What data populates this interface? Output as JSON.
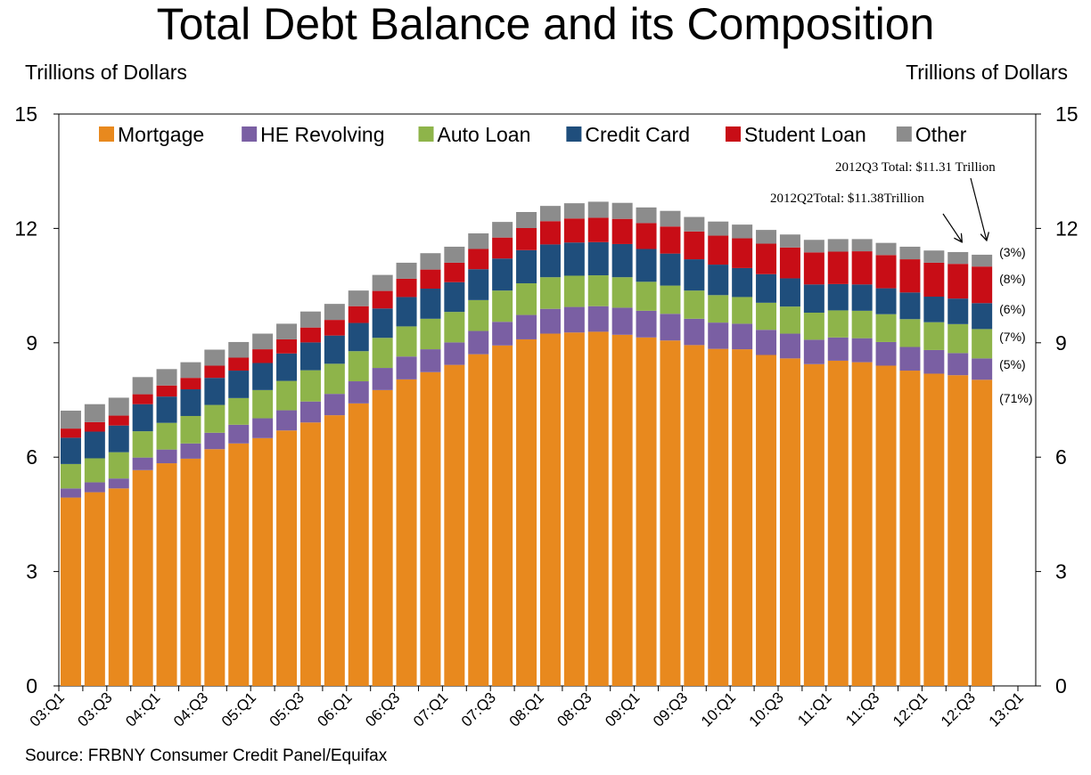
{
  "chart_data": {
    "type": "stacked-bar",
    "title": "Total Debt Balance and its Composition",
    "ylabel_left": "Trillions of Dollars",
    "ylabel_right": "Trillions of Dollars",
    "ylim": [
      0,
      15
    ],
    "yticks": [
      0,
      3,
      6,
      9,
      12,
      15
    ],
    "legend_position": "top",
    "x_tick_labels": [
      "03:Q1",
      "03:Q3",
      "04:Q1",
      "04:Q3",
      "05:Q1",
      "05:Q3",
      "06:Q1",
      "06:Q3",
      "07:Q1",
      "07:Q3",
      "08:Q1",
      "08:Q3",
      "09:Q1",
      "09:Q3",
      "10:Q1",
      "10:Q3",
      "11:Q1",
      "11:Q3",
      "12:Q1",
      "12:Q3",
      "13:Q1"
    ],
    "categories": [
      "03:Q1",
      "03:Q2",
      "03:Q3",
      "03:Q4",
      "04:Q1",
      "04:Q2",
      "04:Q3",
      "04:Q4",
      "05:Q1",
      "05:Q2",
      "05:Q3",
      "05:Q4",
      "06:Q1",
      "06:Q2",
      "06:Q3",
      "06:Q4",
      "07:Q1",
      "07:Q2",
      "07:Q3",
      "07:Q4",
      "08:Q1",
      "08:Q2",
      "08:Q3",
      "08:Q4",
      "09:Q1",
      "09:Q2",
      "09:Q3",
      "09:Q4",
      "10:Q1",
      "10:Q2",
      "10:Q3",
      "10:Q4",
      "11:Q1",
      "11:Q2",
      "11:Q3",
      "11:Q4",
      "12:Q1",
      "12:Q2",
      "12:Q3"
    ],
    "series": [
      {
        "name": "Mortgage",
        "color": "#e8891e",
        "values": [
          4.94,
          5.08,
          5.18,
          5.66,
          5.84,
          5.96,
          6.21,
          6.36,
          6.5,
          6.7,
          6.91,
          7.1,
          7.41,
          7.76,
          8.04,
          8.23,
          8.42,
          8.7,
          8.93,
          9.09,
          9.24,
          9.27,
          9.29,
          9.21,
          9.14,
          9.06,
          8.94,
          8.84,
          8.83,
          8.68,
          8.59,
          8.44,
          8.53,
          8.49,
          8.4,
          8.27,
          8.19,
          8.15,
          8.03
        ]
      },
      {
        "name": "HE Revolving",
        "color": "#7a5fa3",
        "values": [
          0.24,
          0.26,
          0.26,
          0.33,
          0.36,
          0.4,
          0.43,
          0.49,
          0.52,
          0.53,
          0.55,
          0.56,
          0.58,
          0.58,
          0.6,
          0.6,
          0.59,
          0.61,
          0.62,
          0.64,
          0.65,
          0.67,
          0.67,
          0.71,
          0.7,
          0.7,
          0.69,
          0.69,
          0.67,
          0.66,
          0.65,
          0.64,
          0.61,
          0.63,
          0.62,
          0.62,
          0.62,
          0.58,
          0.56
        ]
      },
      {
        "name": "Auto Loan",
        "color": "#8eb44a",
        "values": [
          0.64,
          0.63,
          0.69,
          0.69,
          0.7,
          0.72,
          0.73,
          0.7,
          0.74,
          0.77,
          0.82,
          0.79,
          0.79,
          0.79,
          0.79,
          0.8,
          0.8,
          0.81,
          0.82,
          0.83,
          0.83,
          0.82,
          0.81,
          0.8,
          0.76,
          0.74,
          0.74,
          0.72,
          0.7,
          0.71,
          0.71,
          0.71,
          0.71,
          0.72,
          0.73,
          0.73,
          0.73,
          0.76,
          0.77
        ]
      },
      {
        "name": "Credit Card",
        "color": "#1f4e7c",
        "values": [
          0.69,
          0.7,
          0.7,
          0.71,
          0.69,
          0.7,
          0.71,
          0.72,
          0.71,
          0.72,
          0.73,
          0.74,
          0.74,
          0.77,
          0.77,
          0.79,
          0.78,
          0.81,
          0.84,
          0.87,
          0.86,
          0.87,
          0.87,
          0.87,
          0.86,
          0.84,
          0.82,
          0.8,
          0.76,
          0.75,
          0.74,
          0.74,
          0.69,
          0.69,
          0.68,
          0.7,
          0.67,
          0.67,
          0.68
        ]
      },
      {
        "name": "Student Loan",
        "color": "#c80d16",
        "values": [
          0.24,
          0.25,
          0.26,
          0.26,
          0.29,
          0.3,
          0.32,
          0.34,
          0.36,
          0.37,
          0.39,
          0.41,
          0.44,
          0.46,
          0.48,
          0.5,
          0.51,
          0.53,
          0.55,
          0.58,
          0.61,
          0.63,
          0.64,
          0.66,
          0.68,
          0.71,
          0.73,
          0.76,
          0.78,
          0.8,
          0.81,
          0.84,
          0.85,
          0.87,
          0.87,
          0.87,
          0.89,
          0.91,
          0.96
        ]
      },
      {
        "name": "Other",
        "color": "#8c8c8c",
        "values": [
          0.47,
          0.47,
          0.47,
          0.45,
          0.43,
          0.41,
          0.42,
          0.41,
          0.41,
          0.41,
          0.42,
          0.42,
          0.41,
          0.42,
          0.42,
          0.43,
          0.42,
          0.41,
          0.41,
          0.42,
          0.4,
          0.4,
          0.42,
          0.42,
          0.41,
          0.41,
          0.38,
          0.37,
          0.36,
          0.36,
          0.34,
          0.33,
          0.33,
          0.32,
          0.32,
          0.33,
          0.32,
          0.31,
          0.31
        ]
      }
    ],
    "composition_labels": [
      {
        "series": "Other",
        "text": "(3%)"
      },
      {
        "series": "Student Loan",
        "text": "(8%)"
      },
      {
        "series": "Credit Card",
        "text": "(6%)"
      },
      {
        "series": "Auto Loan",
        "text": "(7%)"
      },
      {
        "series": "HE Revolving",
        "text": "(5%)"
      },
      {
        "series": "Mortgage",
        "text": "(71%)"
      }
    ],
    "annotations": [
      {
        "text": "2012Q3 Total: $11.31 Trillion",
        "points_to": "12:Q3"
      },
      {
        "text": "2012Q2Total: $11.38Trillion",
        "points_to": "12:Q2"
      }
    ],
    "source": "Source: FRBNY Consumer Credit Panel/Equifax"
  }
}
